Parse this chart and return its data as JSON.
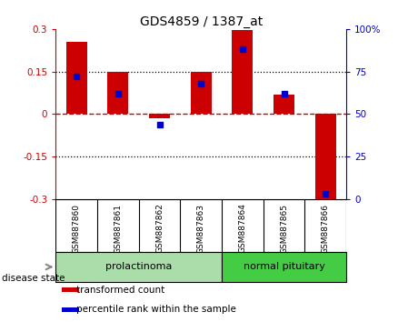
{
  "title": "GDS4859 / 1387_at",
  "samples": [
    "GSM887860",
    "GSM887861",
    "GSM887862",
    "GSM887863",
    "GSM887864",
    "GSM887865",
    "GSM887866"
  ],
  "transformed_count": [
    0.255,
    0.15,
    -0.015,
    0.15,
    0.295,
    0.07,
    -0.305
  ],
  "percentile_rank": [
    72,
    62,
    44,
    68,
    88,
    62,
    3
  ],
  "ylim_left": [
    -0.3,
    0.3
  ],
  "ylim_right": [
    0,
    100
  ],
  "yticks_left": [
    -0.3,
    -0.15,
    0,
    0.15,
    0.3
  ],
  "yticks_right": [
    0,
    25,
    50,
    75,
    100
  ],
  "ytick_labels_left": [
    "-0.3",
    "-0.15",
    "0",
    "0.15",
    "0.3"
  ],
  "ytick_labels_right": [
    "0",
    "25",
    "50",
    "75",
    "100%"
  ],
  "hlines": [
    -0.15,
    0,
    0.15
  ],
  "bar_color": "#CC0000",
  "dot_color": "#0000CC",
  "groups": [
    {
      "label": "prolactinoma",
      "start": 0,
      "end": 3,
      "color": "#aaddaa"
    },
    {
      "label": "normal pituitary",
      "start": 4,
      "end": 6,
      "color": "#44cc44"
    }
  ],
  "disease_state_label": "disease state",
  "legend_items": [
    {
      "label": "transformed count",
      "color": "#CC0000"
    },
    {
      "label": "percentile rank within the sample",
      "color": "#0000CC"
    }
  ],
  "background_color": "#ffffff",
  "label_area_bg": "#c8c8c8",
  "bar_width": 0.5,
  "zero_line_color": "#CC0000",
  "dotted_line_color": "#000000"
}
